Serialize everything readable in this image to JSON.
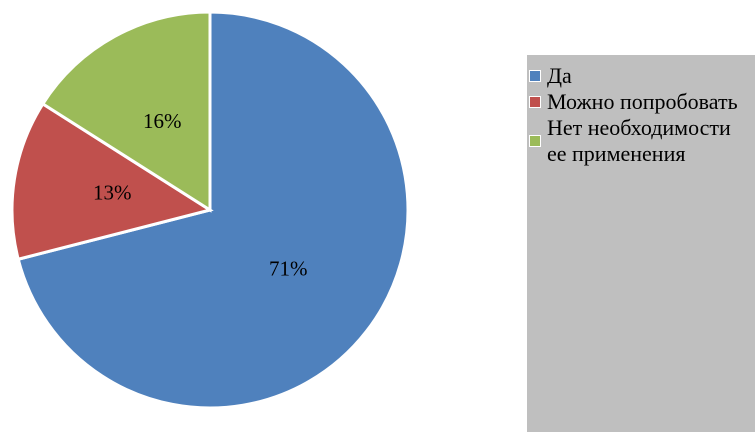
{
  "chart_data": {
    "type": "pie",
    "categories": [
      "Да",
      "Можно попробовать",
      "Нет необходимости ее применения"
    ],
    "values": [
      71,
      13,
      16
    ],
    "value_labels": [
      "71%",
      "13%",
      "16%"
    ],
    "colors": [
      "#4f81bd",
      "#c0504d",
      "#9bbb59"
    ],
    "legend": "right"
  }
}
